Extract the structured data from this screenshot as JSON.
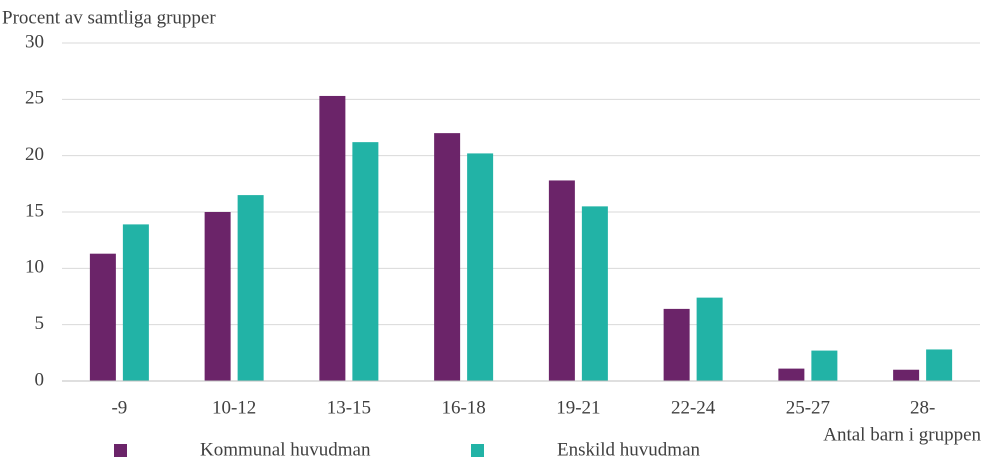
{
  "chart_data": {
    "type": "bar",
    "y_label": "Procent av samtliga grupper",
    "x_label": "Antal barn i gruppen",
    "categories": [
      "-9",
      "10-12",
      "13-15",
      "16-18",
      "19-21",
      "22-24",
      "25-27",
      "28-"
    ],
    "series": [
      {
        "name": "Kommunal huvudman",
        "color": "#6b2469",
        "values": [
          11.3,
          15.0,
          25.3,
          22.0,
          17.8,
          6.4,
          1.1,
          1.0
        ]
      },
      {
        "name": "Enskild huvudman",
        "color": "#22b3a6",
        "values": [
          13.9,
          16.5,
          21.2,
          20.2,
          15.5,
          7.4,
          2.7,
          2.8
        ]
      }
    ],
    "ylim": [
      0,
      30
    ],
    "yticks": [
      0,
      5,
      10,
      15,
      20,
      25,
      30
    ],
    "grid": true,
    "legend": "bottom"
  }
}
